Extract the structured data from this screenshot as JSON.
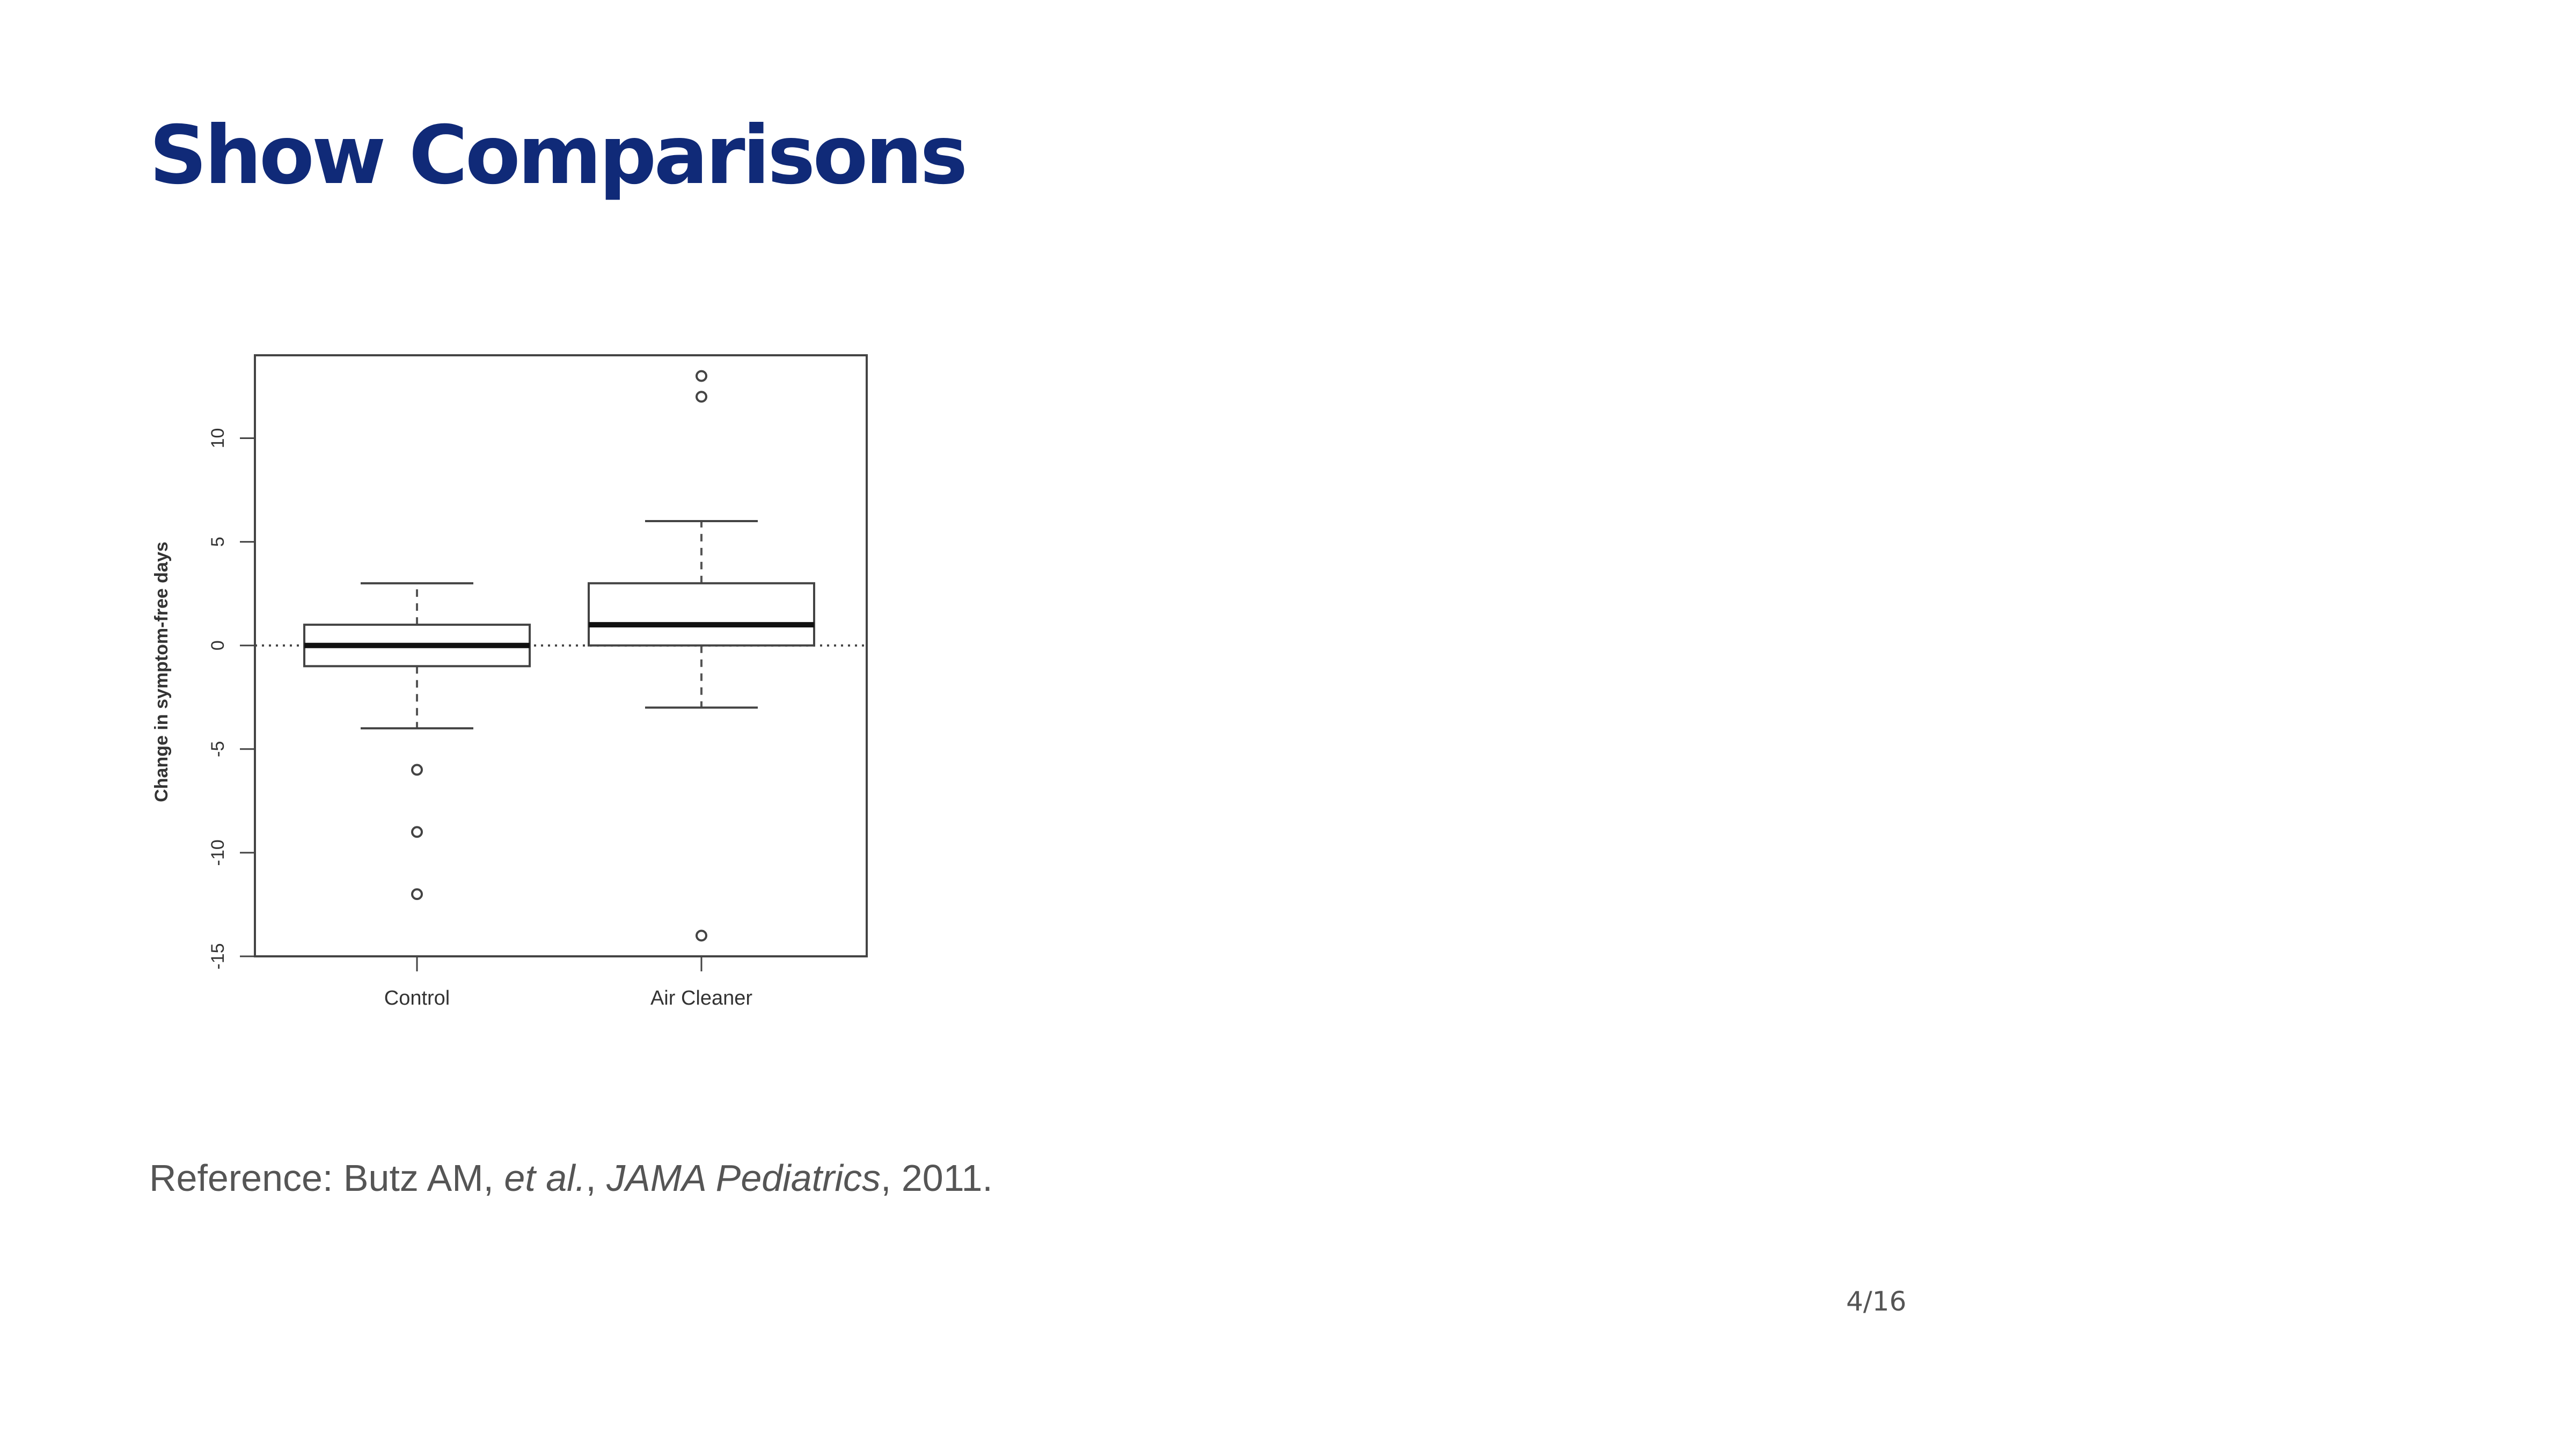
{
  "slide": {
    "title": "Show Comparisons",
    "reference": {
      "prefix": "Reference: Butz AM, ",
      "etal": "et al.",
      "sep": ", ",
      "journal": "JAMA Pediatrics",
      "suffix": ", 2011."
    },
    "page_number": "4/16"
  },
  "chart_data": {
    "type": "boxplot",
    "title": "",
    "xlabel": "",
    "ylabel": "Change in symptom-free days",
    "ylim": [
      -15,
      14
    ],
    "yticks": [
      -15,
      -10,
      -5,
      0,
      5,
      10
    ],
    "ytick_labels": [
      "-15",
      "-10",
      "-5",
      "0",
      "5",
      "10"
    ],
    "reference_line": 0,
    "grid": false,
    "legend": "none",
    "categories": [
      "Control",
      "Air Cleaner"
    ],
    "boxes": [
      {
        "name": "Control",
        "whisker_low": -4,
        "q1": -1,
        "median": 0,
        "q3": 1,
        "whisker_high": 3,
        "outliers": [
          -6,
          -9,
          -12
        ]
      },
      {
        "name": "Air Cleaner",
        "whisker_low": -3,
        "q1": 0,
        "median": 1,
        "q3": 3,
        "whisker_high": 6,
        "outliers": [
          13,
          12,
          -14
        ]
      }
    ]
  }
}
